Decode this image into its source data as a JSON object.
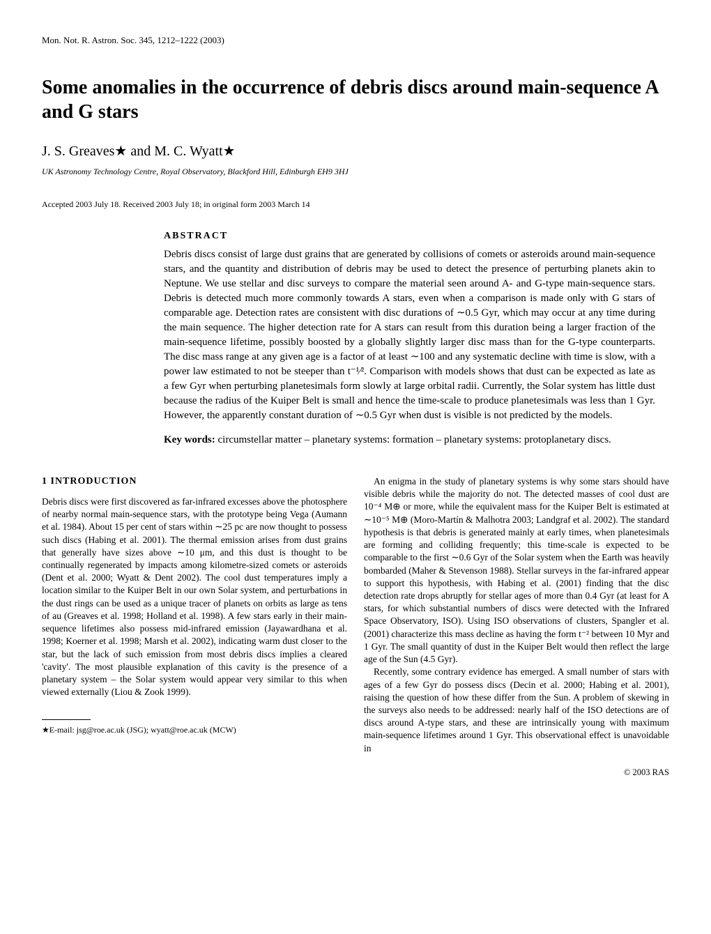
{
  "journal": "Mon. Not. R. Astron. Soc. 345, 1212–1222 (2003)",
  "title": "Some anomalies in the occurrence of debris discs around main-sequence A and G stars",
  "authors": "J. S. Greaves★ and M. C. Wyatt★",
  "affiliation": "UK Astronomy Technology Centre, Royal Observatory, Blackford Hill, Edinburgh EH9 3HJ",
  "accepted": "Accepted 2003 July 18. Received 2003 July 18; in original form 2003 March 14",
  "abstract_heading": "ABSTRACT",
  "abstract_text": "Debris discs consist of large dust grains that are generated by collisions of comets or asteroids around main-sequence stars, and the quantity and distribution of debris may be used to detect the presence of perturbing planets akin to Neptune. We use stellar and disc surveys to compare the material seen around A- and G-type main-sequence stars. Debris is detected much more commonly towards A stars, even when a comparison is made only with G stars of comparable age. Detection rates are consistent with disc durations of ∼0.5 Gyr, which may occur at any time during the main sequence. The higher detection rate for A stars can result from this duration being a larger fraction of the main-sequence lifetime, possibly boosted by a globally slightly larger disc mass than for the G-type counterparts. The disc mass range at any given age is a factor of at least ∼100 and any systematic decline with time is slow, with a power law estimated to not be steeper than t⁻¹⁄². Comparison with models shows that dust can be expected as late as a few Gyr when perturbing planetesimals form slowly at large orbital radii. Currently, the Solar system has little dust because the radius of the Kuiper Belt is small and hence the time-scale to produce planetesimals was less than 1 Gyr. However, the apparently constant duration of ∼0.5 Gyr when dust is visible is not predicted by the models.",
  "keywords_label": "Key words:",
  "keywords": " circumstellar matter – planetary systems: formation – planetary systems: protoplanetary discs.",
  "section1_heading": "1 INTRODUCTION",
  "col1_p1": "Debris discs were first discovered as far-infrared excesses above the photosphere of nearby normal main-sequence stars, with the prototype being Vega (Aumann et al. 1984). About 15 per cent of stars within ∼25 pc are now thought to possess such discs (Habing et al. 2001). The thermal emission arises from dust grains that generally have sizes above ∼10 μm, and this dust is thought to be continually regenerated by impacts among kilometre-sized comets or asteroids (Dent et al. 2000; Wyatt & Dent 2002). The cool dust temperatures imply a location similar to the Kuiper Belt in our own Solar system, and perturbations in the dust rings can be used as a unique tracer of planets on orbits as large as tens of au (Greaves et al. 1998; Holland et al. 1998). A few stars early in their main-sequence lifetimes also possess mid-infrared emission (Jayawardhana et al. 1998; Koerner et al. 1998; Marsh et al. 2002), indicating warm dust closer to the star, but the lack of such emission from most debris discs implies a cleared 'cavity'. The most plausible explanation of this cavity is the presence of a planetary system – the Solar system would appear very similar to this when viewed externally (Liou & Zook 1999).",
  "col2_p1": "An enigma in the study of planetary systems is why some stars should have visible debris while the majority do not. The detected masses of cool dust are 10⁻⁴ M⊕ or more, while the equivalent mass for the Kuiper Belt is estimated at ∼10⁻⁵ M⊕ (Moro-Martín & Malhotra 2003; Landgraf et al. 2002). The standard hypothesis is that debris is generated mainly at early times, when planetesimals are forming and colliding frequently; this time-scale is expected to be comparable to the first ∼0.6 Gyr of the Solar system when the Earth was heavily bombarded (Maher & Stevenson 1988). Stellar surveys in the far-infrared appear to support this hypothesis, with Habing et al. (2001) finding that the disc detection rate drops abruptly for stellar ages of more than 0.4 Gyr (at least for A stars, for which substantial numbers of discs were detected with the Infrared Space Observatory, ISO). Using ISO observations of clusters, Spangler et al. (2001) characterize this mass decline as having the form t⁻² between 10 Myr and 1 Gyr. The small quantity of dust in the Kuiper Belt would then reflect the large age of the Sun (4.5 Gyr).",
  "col2_p2": "Recently, some contrary evidence has emerged. A small number of stars with ages of a few Gyr do possess discs (Decin et al. 2000; Habing et al. 2001), raising the question of how these differ from the Sun. A problem of skewing in the surveys also needs to be addressed: nearly half of the ISO detections are of discs around A-type stars, and these are intrinsically young with maximum main-sequence lifetimes around 1 Gyr. This observational effect is unavoidable in",
  "footnote": "★E-mail: jsg@roe.ac.uk (JSG); wyatt@roe.ac.uk (MCW)",
  "copyright": "© 2003 RAS"
}
